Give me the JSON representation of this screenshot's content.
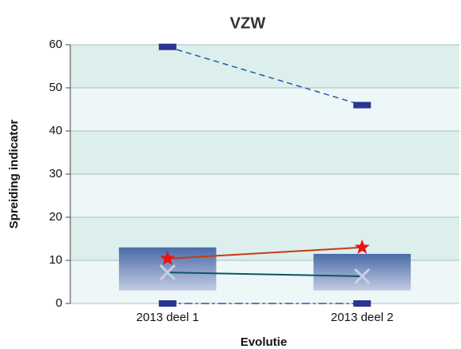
{
  "chart_data": {
    "type": "box",
    "title": "VZW",
    "x_label": "Evolutie",
    "y_label": "Spreiding indicator",
    "categories": [
      "2013 deel 1",
      "2013 deel 2"
    ],
    "ylim": [
      0,
      60
    ],
    "yticks": [
      0,
      10,
      20,
      30,
      40,
      50,
      60
    ],
    "grid": true,
    "band_colors": [
      "#eef7f7",
      "#dcefed"
    ],
    "box": {
      "low": [
        3,
        3
      ],
      "high": [
        13,
        11.5
      ],
      "color": "#3d5f9e"
    },
    "max": {
      "values": [
        59.5,
        46
      ],
      "color": "#2b3590",
      "line_color": "#1f5aa8"
    },
    "min": {
      "values": [
        0,
        0
      ],
      "color": "#2b3590",
      "line_color": "#1f5aa8"
    },
    "star": {
      "values": [
        10.4,
        13
      ],
      "color": "#ee1111",
      "line_color": "#c83a14"
    },
    "cross": {
      "values": [
        7.2,
        6.3
      ],
      "color": "#c8cfe8",
      "line_color": "#0e5666"
    }
  }
}
